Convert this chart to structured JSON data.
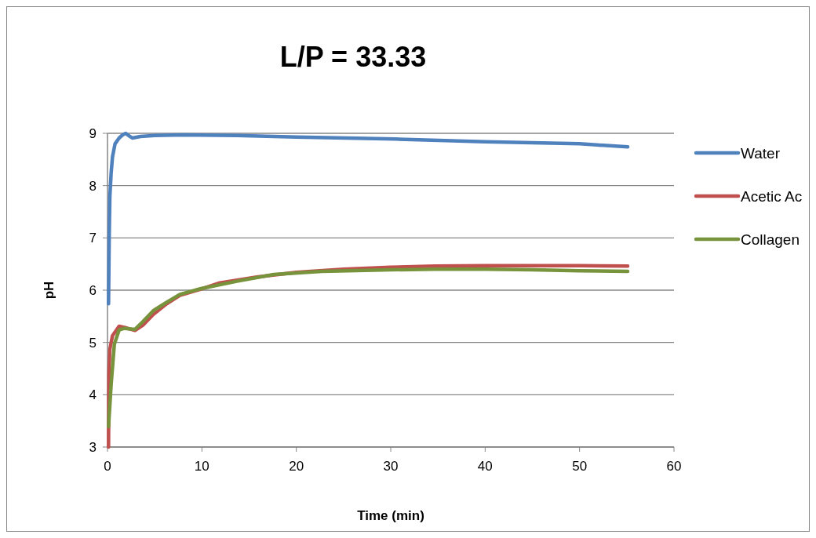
{
  "chart_data": {
    "type": "line",
    "title": "L/P = 33.33",
    "xlabel": "Time (min)",
    "ylabel": "pH",
    "xlim": [
      0,
      60
    ],
    "ylim": [
      3,
      9
    ],
    "xticks": [
      0,
      10,
      20,
      30,
      40,
      50,
      60
    ],
    "yticks": [
      3,
      4,
      5,
      6,
      7,
      8,
      9
    ],
    "grid": "y",
    "legend": "right",
    "marker": "none",
    "line_style": "solid",
    "series": [
      {
        "name": "Water",
        "color": "#4f81bd",
        "x": [
          0.11,
          0.18,
          0.25,
          0.39,
          0.53,
          0.8,
          1.23,
          1.6,
          1.93,
          2.3,
          2.63,
          3.5,
          5,
          8,
          13.7,
          20,
          30.5,
          40,
          50,
          52.5,
          55.1
        ],
        "values": [
          5.74,
          7.0,
          7.79,
          8.25,
          8.55,
          8.8,
          8.91,
          8.97,
          9.0,
          8.95,
          8.91,
          8.94,
          8.96,
          8.97,
          8.96,
          8.93,
          8.89,
          8.84,
          8.8,
          8.77,
          8.74
        ]
      },
      {
        "name": "Acetic Ac",
        "color": "#c0504d",
        "x": [
          0.11,
          0.15,
          0.25,
          0.53,
          1.23,
          1.79,
          2.91,
          3.75,
          4.87,
          6.27,
          7.67,
          9.9,
          11.9,
          15.8,
          20,
          25,
          30,
          34.7,
          40,
          45,
          50,
          55.1
        ],
        "values": [
          3.0,
          4.4,
          4.87,
          5.13,
          5.31,
          5.29,
          5.23,
          5.33,
          5.54,
          5.74,
          5.9,
          6.02,
          6.14,
          6.25,
          6.34,
          6.4,
          6.44,
          6.46,
          6.47,
          6.47,
          6.47,
          6.46
        ]
      },
      {
        "name": "Collagen",
        "color": "#77933c",
        "x": [
          0.11,
          0.39,
          0.73,
          1.23,
          1.8,
          2.9,
          3.75,
          4.87,
          6.27,
          7.67,
          9.9,
          13.7,
          17.6,
          22.7,
          30,
          34.7,
          40,
          45,
          50,
          55.1
        ],
        "values": [
          3.39,
          4.21,
          4.97,
          5.24,
          5.27,
          5.25,
          5.4,
          5.61,
          5.77,
          5.92,
          6.03,
          6.17,
          6.3,
          6.36,
          6.39,
          6.4,
          6.4,
          6.39,
          6.37,
          6.36
        ]
      }
    ]
  }
}
